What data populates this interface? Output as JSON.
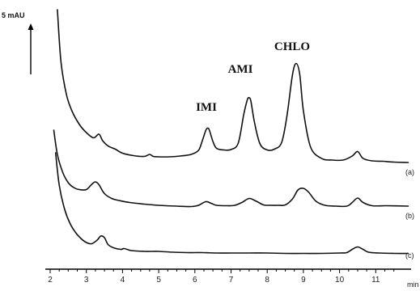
{
  "chart_data": {
    "type": "line",
    "title": "",
    "xlabel": "min",
    "ylabel": "",
    "xlim": [
      2,
      12
    ],
    "x_ticks": [
      "2",
      "3",
      "4",
      "5",
      "6",
      "7",
      "8",
      "9",
      "10",
      "11"
    ],
    "scale_bar_label": "5 mAU",
    "scale_bar_value": 5,
    "peak_labels": [
      {
        "text": "IMI",
        "x": 6.35
      },
      {
        "text": "AMI",
        "x": 7.5
      },
      {
        "text": "CHLO",
        "x": 8.8
      }
    ],
    "series": [
      {
        "name": "(a)",
        "x": [
          2.2,
          2.3,
          2.45,
          2.6,
          2.8,
          3.0,
          3.2,
          3.35,
          3.45,
          3.6,
          3.8,
          4.0,
          4.3,
          4.6,
          4.75,
          4.85,
          5.0,
          5.3,
          5.6,
          5.9,
          6.1,
          6.2,
          6.3,
          6.35,
          6.4,
          6.5,
          6.6,
          6.8,
          7.0,
          7.2,
          7.35,
          7.45,
          7.5,
          7.55,
          7.65,
          7.8,
          8.0,
          8.2,
          8.4,
          8.55,
          8.7,
          8.8,
          8.9,
          9.0,
          9.2,
          9.5,
          9.8,
          10.1,
          10.35,
          10.5,
          10.65,
          10.9,
          11.2,
          11.5,
          11.9
        ],
        "values": [
          80.0,
          54.0,
          38.0,
          30.0,
          23.4,
          19.2,
          16.6,
          18.4,
          15.2,
          12.6,
          11.0,
          9.0,
          7.8,
          7.4,
          8.4,
          7.4,
          7.2,
          7.2,
          7.6,
          8.4,
          10.4,
          14.8,
          20.2,
          21.4,
          20.4,
          14.8,
          11.4,
          10.6,
          10.8,
          14.0,
          28.0,
          35.4,
          36.4,
          34.6,
          24.0,
          13.6,
          10.6,
          11.0,
          14.4,
          28.0,
          48.0,
          53.4,
          48.0,
          30.0,
          12.0,
          6.4,
          5.6,
          5.6,
          7.6,
          9.8,
          6.4,
          5.2,
          5.0,
          4.6,
          4.4
        ]
      },
      {
        "name": "(b)",
        "x": [
          2.1,
          2.2,
          2.35,
          2.5,
          2.65,
          2.8,
          3.0,
          3.15,
          3.25,
          3.35,
          3.5,
          3.7,
          3.9,
          4.2,
          4.6,
          5.0,
          5.5,
          5.9,
          6.1,
          6.3,
          6.45,
          6.6,
          6.9,
          7.1,
          7.3,
          7.5,
          7.7,
          7.9,
          8.1,
          8.3,
          8.5,
          8.7,
          8.85,
          9.0,
          9.15,
          9.35,
          9.6,
          9.9,
          10.2,
          10.35,
          10.5,
          10.65,
          10.9,
          11.3,
          11.9
        ],
        "values": [
          42.0,
          30.0,
          21.0,
          16.0,
          13.6,
          12.6,
          12.6,
          15.2,
          16.4,
          15.0,
          10.6,
          8.2,
          7.2,
          6.2,
          5.4,
          4.8,
          4.4,
          4.2,
          4.8,
          6.6,
          5.8,
          4.8,
          4.6,
          4.8,
          6.2,
          8.2,
          6.8,
          5.0,
          4.8,
          4.8,
          5.0,
          8.0,
          12.4,
          13.2,
          11.2,
          6.8,
          4.8,
          4.4,
          4.4,
          6.2,
          8.4,
          6.2,
          4.6,
          4.6,
          4.4
        ]
      },
      {
        "name": "(c)",
        "x": [
          2.15,
          2.25,
          2.4,
          2.55,
          2.7,
          2.85,
          3.0,
          3.15,
          3.3,
          3.4,
          3.5,
          3.6,
          3.75,
          3.95,
          4.05,
          4.25,
          4.6,
          5.0,
          5.4,
          5.8,
          6.2,
          6.6,
          7.0,
          7.5,
          8.0,
          8.5,
          9.0,
          9.5,
          10.0,
          10.2,
          10.35,
          10.5,
          10.65,
          10.8,
          11.1,
          11.5,
          11.9
        ],
        "values": [
          50.0,
          34.0,
          22.0,
          15.0,
          10.6,
          7.6,
          5.6,
          5.0,
          6.8,
          8.8,
          8.0,
          4.6,
          3.0,
          2.2,
          2.6,
          1.6,
          1.2,
          1.2,
          0.8,
          0.6,
          0.6,
          0.4,
          0.4,
          0.4,
          0.4,
          0.2,
          0.2,
          0.2,
          0.4,
          0.6,
          2.2,
          3.4,
          2.2,
          0.8,
          0.4,
          0.2,
          0.2
        ]
      }
    ]
  }
}
